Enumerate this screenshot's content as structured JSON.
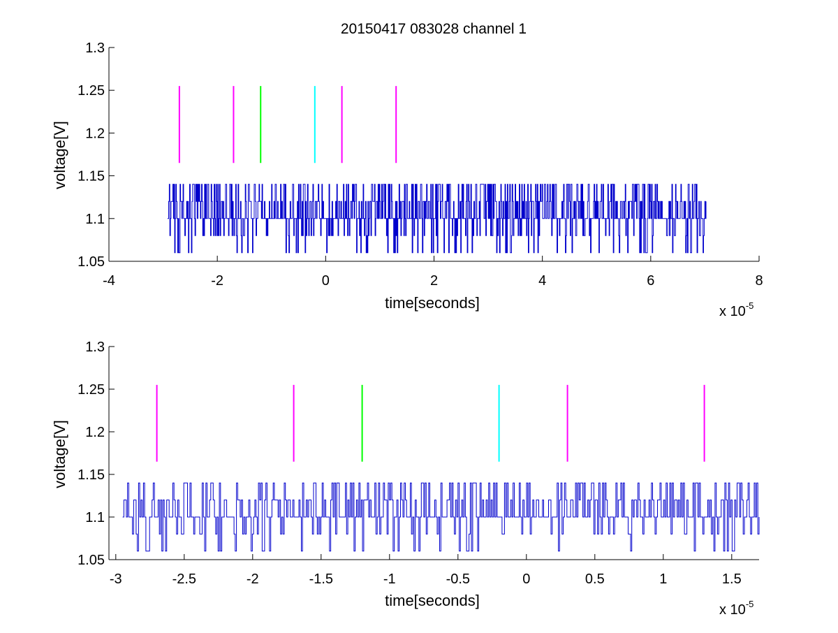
{
  "chart_data": [
    {
      "type": "line",
      "title": "20150417 083028 channel 1",
      "xlabel": "time[seconds]",
      "ylabel": "voltage[V]",
      "x_multiplier_label": "x 10",
      "x_multiplier_exponent": "-5",
      "x_scale": 1e-05,
      "xlim": [
        -4,
        8
      ],
      "ylim": [
        1.05,
        1.3
      ],
      "xticks": [
        -4,
        -2,
        0,
        2,
        4,
        6,
        8
      ],
      "xtick_labels": [
        "-4",
        "-2",
        "0",
        "2",
        "4",
        "6",
        "8"
      ],
      "yticks": [
        1.05,
        1.1,
        1.15,
        1.2,
        1.25,
        1.3
      ],
      "ytick_labels": [
        "1.05",
        "1.1",
        "1.15",
        "1.2",
        "1.25",
        "1.3"
      ],
      "grid": false,
      "series": [
        {
          "color": "#0000cc",
          "x_range": [
            -2.92,
            7.02
          ],
          "levels": [
            1.06,
            1.08,
            1.1,
            1.12,
            1.14
          ],
          "baseline": 1.1
        }
      ],
      "markers": [
        {
          "x": -2.7,
          "y_range": [
            1.165,
            1.255
          ],
          "color": "#ff00ff"
        },
        {
          "x": -1.7,
          "y_range": [
            1.165,
            1.255
          ],
          "color": "#ff00ff"
        },
        {
          "x": -1.2,
          "y_range": [
            1.165,
            1.255
          ],
          "color": "#00ff00"
        },
        {
          "x": -0.2,
          "y_range": [
            1.165,
            1.255
          ],
          "color": "#00ffff"
        },
        {
          "x": 0.3,
          "y_range": [
            1.165,
            1.255
          ],
          "color": "#ff00ff"
        },
        {
          "x": 1.3,
          "y_range": [
            1.165,
            1.255
          ],
          "color": "#ff00ff"
        }
      ]
    },
    {
      "type": "line",
      "title": "",
      "xlabel": "time[seconds]",
      "ylabel": "voltage[V]",
      "x_multiplier_label": "x 10",
      "x_multiplier_exponent": "-5",
      "x_scale": 1e-05,
      "xlim": [
        -3.05,
        1.7
      ],
      "ylim": [
        1.05,
        1.3
      ],
      "xticks": [
        -3,
        -2.5,
        -2,
        -1.5,
        -1,
        -0.5,
        0,
        0.5,
        1,
        1.5
      ],
      "xtick_labels": [
        "-3",
        "-2.5",
        "-2",
        "-1.5",
        "-1",
        "-0.5",
        "0",
        "0.5",
        "1",
        "1.5"
      ],
      "yticks": [
        1.05,
        1.1,
        1.15,
        1.2,
        1.25,
        1.3
      ],
      "ytick_labels": [
        "1.05",
        "1.1",
        "1.15",
        "1.2",
        "1.25",
        "1.3"
      ],
      "grid": false,
      "series": [
        {
          "color": "#0000cc",
          "x_range": [
            -2.95,
            1.7
          ],
          "levels": [
            1.06,
            1.08,
            1.1,
            1.12,
            1.14
          ],
          "baseline": 1.1
        }
      ],
      "markers": [
        {
          "x": -2.7,
          "y_range": [
            1.165,
            1.255
          ],
          "color": "#ff00ff"
        },
        {
          "x": -1.7,
          "y_range": [
            1.165,
            1.255
          ],
          "color": "#ff00ff"
        },
        {
          "x": -1.2,
          "y_range": [
            1.165,
            1.255
          ],
          "color": "#00ff00"
        },
        {
          "x": -0.2,
          "y_range": [
            1.165,
            1.255
          ],
          "color": "#00ffff"
        },
        {
          "x": 0.3,
          "y_range": [
            1.165,
            1.255
          ],
          "color": "#ff00ff"
        },
        {
          "x": 1.3,
          "y_range": [
            1.165,
            1.255
          ],
          "color": "#ff00ff"
        }
      ]
    }
  ]
}
